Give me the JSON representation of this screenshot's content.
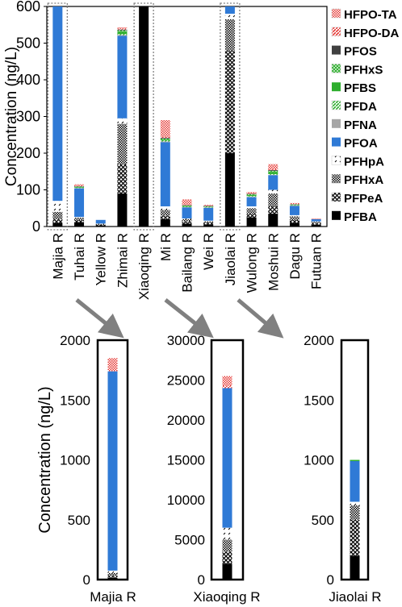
{
  "chart_data": [
    {
      "type": "bar",
      "stacked": true,
      "ylabel": "Concentration (ng/L)",
      "ylim": [
        0,
        600
      ],
      "yticks": [
        0,
        100,
        200,
        300,
        400,
        500,
        600
      ],
      "categories": [
        "Majia R",
        "Tuhai R",
        "Yellow R",
        "Zhimai R",
        "Xiaoqing R",
        "Mi R",
        "Bailang R",
        "Wei R",
        "Jiaolai R",
        "Wulong R",
        "Moshui R",
        "Dagu R",
        "Futuan R"
      ],
      "highlighted": [
        "Majia R",
        "Xiaoqing R",
        "Jiaolai R"
      ],
      "legend_position": "right",
      "series": [
        {
          "name": "PFBA",
          "color": "#000000",
          "pattern": "solid",
          "values": [
            10,
            12,
            3,
            90,
            600,
            20,
            8,
            6,
            200,
            25,
            35,
            10,
            5
          ]
        },
        {
          "name": "PFPeA",
          "color": "#000000",
          "pattern": "cross",
          "values": [
            10,
            6,
            2,
            80,
            0,
            10,
            6,
            4,
            280,
            10,
            20,
            8,
            4
          ]
        },
        {
          "name": "PFHxA",
          "color": "#000000",
          "pattern": "dots",
          "values": [
            20,
            6,
            2,
            110,
            0,
            15,
            6,
            4,
            85,
            15,
            35,
            10,
            4
          ]
        },
        {
          "name": "PFHpA",
          "color": "#000000",
          "pattern": "dashed",
          "values": [
            30,
            2,
            1,
            15,
            0,
            10,
            2,
            2,
            15,
            5,
            10,
            3,
            1
          ]
        },
        {
          "name": "PFOA",
          "color": "#2f7ad6",
          "pattern": "solid",
          "values": [
            530,
            78,
            10,
            225,
            0,
            175,
            30,
            35,
            20,
            25,
            40,
            25,
            6
          ]
        },
        {
          "name": "PFNA",
          "color": "#a6a6a6",
          "pattern": "solid",
          "values": [
            0,
            1,
            0,
            2,
            0,
            2,
            1,
            1,
            0,
            1,
            1,
            1,
            0
          ]
        },
        {
          "name": "PFDA",
          "color": "#2eae2e",
          "pattern": "stripe",
          "values": [
            0,
            1,
            0,
            3,
            0,
            3,
            1,
            1,
            0,
            2,
            2,
            1,
            0
          ]
        },
        {
          "name": "PFBS",
          "color": "#2eae2e",
          "pattern": "solid",
          "values": [
            0,
            2,
            0,
            6,
            0,
            3,
            2,
            1,
            0,
            3,
            6,
            1,
            0
          ]
        },
        {
          "name": "PFHxS",
          "color": "#2eae2e",
          "pattern": "cross",
          "values": [
            0,
            1,
            0,
            4,
            0,
            2,
            1,
            1,
            0,
            2,
            3,
            1,
            0
          ]
        },
        {
          "name": "PFOS",
          "color": "#404040",
          "pattern": "solid",
          "values": [
            0,
            1,
            0,
            2,
            0,
            2,
            1,
            1,
            0,
            1,
            2,
            1,
            0
          ]
        },
        {
          "name": "HFPO-DA",
          "color": "#e53935",
          "pattern": "stripe",
          "values": [
            0,
            1,
            0,
            2,
            0,
            2,
            1,
            0,
            0,
            0,
            2,
            0,
            0
          ]
        },
        {
          "name": "HFPO-TA",
          "color": "#e53935",
          "pattern": "checker",
          "values": [
            0,
            4,
            0,
            4,
            0,
            46,
            15,
            3,
            0,
            5,
            14,
            3,
            2
          ]
        }
      ]
    },
    {
      "type": "bar",
      "stacked": true,
      "ylabel": "Concentration (ng/L)",
      "ylim": [
        0,
        2000
      ],
      "yticks": [
        0,
        500,
        1000,
        1500,
        2000
      ],
      "categories": [
        "Majia R"
      ],
      "series": [
        {
          "name": "PFBA",
          "values": [
            15
          ]
        },
        {
          "name": "PFPeA",
          "values": [
            15
          ]
        },
        {
          "name": "PFHxA",
          "values": [
            25
          ]
        },
        {
          "name": "PFHpA",
          "values": [
            20
          ]
        },
        {
          "name": "PFOA",
          "values": [
            1665
          ]
        },
        {
          "name": "HFPO-TA",
          "values": [
            110
          ]
        }
      ]
    },
    {
      "type": "bar",
      "stacked": true,
      "ylim": [
        0,
        30000
      ],
      "yticks": [
        0,
        5000,
        10000,
        15000,
        20000,
        25000,
        30000
      ],
      "categories": [
        "Xiaoqing R"
      ],
      "series": [
        {
          "name": "PFBA",
          "values": [
            2000
          ]
        },
        {
          "name": "PFPeA",
          "values": [
            1500
          ]
        },
        {
          "name": "PFHxA",
          "values": [
            1500
          ]
        },
        {
          "name": "PFHpA",
          "values": [
            1500
          ]
        },
        {
          "name": "PFOA",
          "values": [
            17500
          ]
        },
        {
          "name": "HFPO-DA",
          "values": [
            300
          ]
        },
        {
          "name": "HFPO-TA",
          "values": [
            1200
          ]
        }
      ]
    },
    {
      "type": "bar",
      "stacked": true,
      "ylim": [
        0,
        2000
      ],
      "yticks": [
        0,
        500,
        1000,
        1500,
        2000
      ],
      "categories": [
        "Jiaolai R"
      ],
      "series": [
        {
          "name": "PFBA",
          "values": [
            200
          ]
        },
        {
          "name": "PFPeA",
          "values": [
            300
          ]
        },
        {
          "name": "PFHxA",
          "values": [
            120
          ]
        },
        {
          "name": "PFHpA",
          "values": [
            30
          ]
        },
        {
          "name": "PFOA",
          "values": [
            340
          ]
        },
        {
          "name": "PFBS",
          "values": [
            10
          ]
        }
      ]
    }
  ]
}
